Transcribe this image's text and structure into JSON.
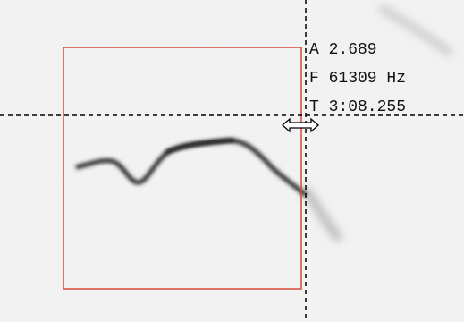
{
  "readout": {
    "lines": [
      "A 2.689",
      "F 61309 Hz",
      "T 3:08.255"
    ]
  }
}
